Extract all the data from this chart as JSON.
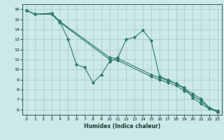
{
  "title": "",
  "xlabel": "Humidex (Indice chaleur)",
  "background_color": "#cce8e8",
  "grid_color": "#aacccc",
  "line_color": "#2e7b6e",
  "xlim": [
    -0.5,
    23.5
  ],
  "ylim": [
    5.5,
    16.5
  ],
  "xticks": [
    0,
    1,
    2,
    3,
    4,
    5,
    6,
    7,
    8,
    9,
    10,
    11,
    12,
    13,
    14,
    15,
    16,
    17,
    18,
    19,
    20,
    21,
    22,
    23
  ],
  "yticks": [
    6,
    7,
    8,
    9,
    10,
    11,
    12,
    13,
    14,
    15,
    16
  ],
  "series1_x": [
    0,
    1,
    3,
    4,
    5,
    6,
    7,
    8,
    9,
    10,
    11,
    12,
    13,
    14,
    15,
    16,
    17,
    18,
    19,
    20,
    21,
    22,
    23
  ],
  "series1_y": [
    15.9,
    15.5,
    15.6,
    14.8,
    13.0,
    10.5,
    10.2,
    8.7,
    9.5,
    10.8,
    11.2,
    13.0,
    13.2,
    13.9,
    12.9,
    9.3,
    9.0,
    8.6,
    8.2,
    7.2,
    6.6,
    6.1,
    5.8
  ],
  "series2_x": [
    0,
    1,
    3,
    4,
    10,
    11,
    15,
    16,
    17,
    18,
    19,
    20,
    21,
    22,
    23
  ],
  "series2_y": [
    15.9,
    15.5,
    15.5,
    14.7,
    11.0,
    10.9,
    9.3,
    9.0,
    8.7,
    8.4,
    7.9,
    7.4,
    6.9,
    6.1,
    5.8
  ],
  "series3_x": [
    0,
    1,
    3,
    4,
    10,
    11,
    15,
    16,
    17,
    18,
    19,
    20,
    21,
    22,
    23
  ],
  "series3_y": [
    15.9,
    15.5,
    15.6,
    14.8,
    11.2,
    11.1,
    9.5,
    9.2,
    8.9,
    8.6,
    8.1,
    7.6,
    7.1,
    6.2,
    5.9
  ]
}
